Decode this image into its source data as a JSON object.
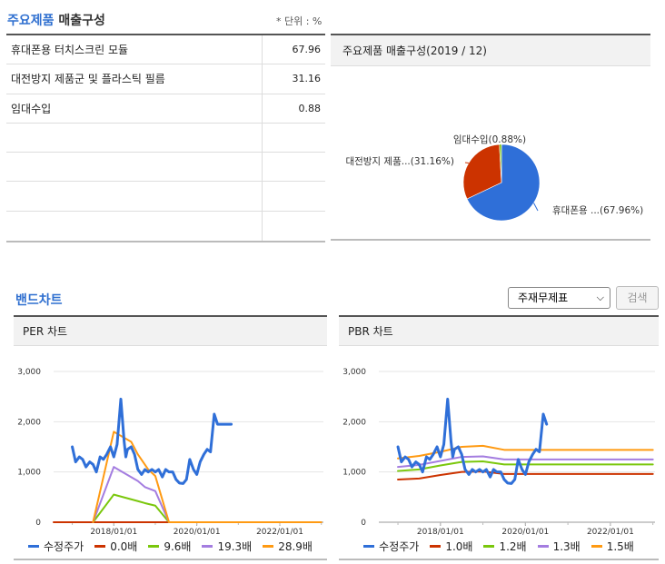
{
  "products": {
    "title_blue": "주요제품",
    "title_rest": "매출구성",
    "unit": "* 단위 : %",
    "rows": [
      {
        "name": "휴대폰용 터치스크린 모듈",
        "value": "67.96"
      },
      {
        "name": "대전방지 제품군 및 플라스틱 필름",
        "value": "31.16"
      },
      {
        "name": "임대수입",
        "value": "0.88"
      },
      {
        "name": "",
        "value": ""
      },
      {
        "name": "",
        "value": ""
      },
      {
        "name": "",
        "value": ""
      },
      {
        "name": "",
        "value": ""
      }
    ]
  },
  "pie": {
    "title": "주요제품 매출구성(2019 / 12)",
    "slices": [
      {
        "label": "휴대폰용 ...(67.96%)",
        "value": 67.96,
        "color": "#2f6fd8"
      },
      {
        "label": "대전방지 제품...(31.16%)",
        "value": 31.16,
        "color": "#cc3300"
      },
      {
        "label": "임대수입(0.88%)",
        "value": 0.88,
        "color": "#7ac70c"
      }
    ]
  },
  "band": {
    "title": "밴드차트",
    "select_value": "주재무제표",
    "search_label": "검색"
  },
  "chart_data": [
    {
      "type": "line",
      "title": "PER 차트",
      "yticks": [
        "3,000",
        "2,000",
        "1,000",
        "0"
      ],
      "ylim": [
        0,
        3000
      ],
      "xticks": [
        "2018/01/01",
        "2020/01/01",
        "2022/01/01"
      ],
      "series": [
        {
          "name": "수정주가",
          "color": "#2f6fd8",
          "width": 3,
          "x": [
            2017.0,
            2017.08,
            2017.17,
            2017.25,
            2017.33,
            2017.42,
            2017.5,
            2017.58,
            2017.67,
            2017.75,
            2017.83,
            2017.92,
            2018.0,
            2018.08,
            2018.17,
            2018.25,
            2018.29,
            2018.33,
            2018.42,
            2018.5,
            2018.58,
            2018.67,
            2018.75,
            2018.83,
            2018.92,
            2019.0,
            2019.08,
            2019.17,
            2019.25,
            2019.33,
            2019.42,
            2019.5,
            2019.58,
            2019.67,
            2019.75,
            2019.83,
            2019.92,
            2020.0,
            2020.08,
            2020.17,
            2020.25,
            2020.33,
            2020.42,
            2020.5,
            2020.58,
            2020.67,
            2020.75,
            2020.83
          ],
          "y": [
            1500,
            1200,
            1300,
            1250,
            1100,
            1200,
            1150,
            1000,
            1300,
            1250,
            1350,
            1500,
            1300,
            1550,
            2450,
            1600,
            1300,
            1450,
            1500,
            1350,
            1050,
            950,
            1050,
            1000,
            1050,
            1000,
            1050,
            900,
            1050,
            1000,
            1000,
            850,
            780,
            770,
            850,
            1250,
            1050,
            950,
            1200,
            1350,
            1450,
            1400,
            2150,
            1950,
            1950,
            1950,
            1950,
            1950
          ]
        },
        {
          "name": "0.0배",
          "color": "#cc3300",
          "width": 2,
          "x": [
            2016.5,
            2023.0
          ],
          "y": [
            0,
            0
          ]
        },
        {
          "name": "9.6배",
          "color": "#7ac70c",
          "width": 2,
          "x": [
            2017.5,
            2018.0,
            2018.58,
            2018.75,
            2019.0,
            2019.33,
            2023.0
          ],
          "y": [
            0,
            550,
            420,
            380,
            330,
            0,
            0
          ]
        },
        {
          "name": "19.3배",
          "color": "#a47de0",
          "width": 2,
          "x": [
            2017.5,
            2018.0,
            2018.58,
            2018.75,
            2019.0,
            2019.33,
            2023.0
          ],
          "y": [
            0,
            1100,
            820,
            700,
            620,
            0,
            0
          ]
        },
        {
          "name": "28.9배",
          "color": "#ff9a12",
          "width": 2,
          "x": [
            2017.5,
            2018.0,
            2018.42,
            2018.58,
            2018.83,
            2019.0,
            2019.33,
            2023.0
          ],
          "y": [
            0,
            1800,
            1600,
            1350,
            1050,
            920,
            0,
            0
          ]
        }
      ]
    },
    {
      "type": "line",
      "title": "PBR 차트",
      "yticks": [
        "3,000",
        "2,000",
        "1,000",
        "0"
      ],
      "ylim": [
        0,
        3000
      ],
      "xticks": [
        "2018/01/01",
        "2020/01/01",
        "2022/01/01"
      ],
      "series": [
        {
          "name": "수정주가",
          "color": "#2f6fd8",
          "width": 3,
          "x": [
            2017.0,
            2017.08,
            2017.17,
            2017.25,
            2017.33,
            2017.42,
            2017.5,
            2017.58,
            2017.67,
            2017.75,
            2017.83,
            2017.92,
            2018.0,
            2018.08,
            2018.17,
            2018.25,
            2018.29,
            2018.33,
            2018.42,
            2018.5,
            2018.58,
            2018.67,
            2018.75,
            2018.83,
            2018.92,
            2019.0,
            2019.08,
            2019.17,
            2019.25,
            2019.33,
            2019.42,
            2019.5,
            2019.58,
            2019.67,
            2019.75,
            2019.83,
            2019.92,
            2020.0,
            2020.08,
            2020.17,
            2020.25,
            2020.33,
            2020.42,
            2020.5
          ],
          "y": [
            1500,
            1200,
            1300,
            1250,
            1100,
            1200,
            1150,
            1000,
            1300,
            1250,
            1350,
            1500,
            1300,
            1550,
            2450,
            1600,
            1300,
            1450,
            1500,
            1350,
            1050,
            950,
            1050,
            1000,
            1050,
            1000,
            1050,
            900,
            1050,
            1000,
            1000,
            850,
            780,
            770,
            850,
            1250,
            1050,
            950,
            1200,
            1350,
            1450,
            1400,
            2150,
            1950
          ]
        },
        {
          "name": "1.0배",
          "color": "#cc3300",
          "width": 2,
          "x": [
            2017.0,
            2017.5,
            2018.0,
            2018.5,
            2019.0,
            2019.5,
            2020.0,
            2023.0
          ],
          "y": [
            850,
            870,
            940,
            1000,
            1010,
            960,
            960,
            960
          ]
        },
        {
          "name": "1.2배",
          "color": "#7ac70c",
          "width": 2,
          "x": [
            2017.0,
            2017.5,
            2018.0,
            2018.5,
            2019.0,
            2019.5,
            2020.0,
            2023.0
          ],
          "y": [
            1020,
            1050,
            1130,
            1200,
            1210,
            1150,
            1150,
            1150
          ]
        },
        {
          "name": "1.3배",
          "color": "#a47de0",
          "width": 2,
          "x": [
            2017.0,
            2017.5,
            2018.0,
            2018.5,
            2019.0,
            2019.5,
            2020.0,
            2023.0
          ],
          "y": [
            1100,
            1140,
            1220,
            1300,
            1310,
            1250,
            1250,
            1250
          ]
        },
        {
          "name": "1.5배",
          "color": "#ff9a12",
          "width": 2,
          "x": [
            2017.0,
            2017.5,
            2018.0,
            2018.5,
            2019.0,
            2019.5,
            2020.0,
            2023.0
          ],
          "y": [
            1270,
            1320,
            1400,
            1500,
            1520,
            1440,
            1440,
            1440
          ]
        }
      ]
    }
  ]
}
